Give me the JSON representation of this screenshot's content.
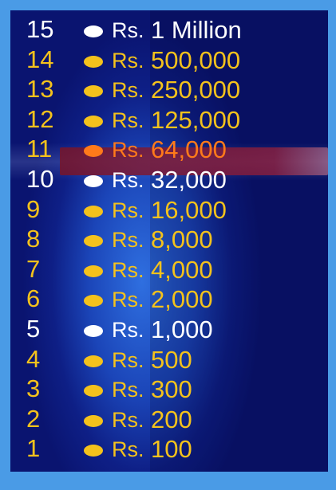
{
  "currency": "Rs.",
  "colors": {
    "safe": "#ffffff",
    "regular": "#f4c21c",
    "current": "#ff7a1a"
  },
  "levels": [
    {
      "num": "15",
      "amount": "1 Million",
      "style": "white"
    },
    {
      "num": "14",
      "amount": "500,000",
      "style": "gold"
    },
    {
      "num": "13",
      "amount": "250,000",
      "style": "gold"
    },
    {
      "num": "12",
      "amount": "125,000",
      "style": "gold"
    },
    {
      "num": "11",
      "amount": "64,000",
      "style": "current"
    },
    {
      "num": "10",
      "amount": "32,000",
      "style": "white"
    },
    {
      "num": "9",
      "amount": "16,000",
      "style": "gold"
    },
    {
      "num": "8",
      "amount": "8,000",
      "style": "gold"
    },
    {
      "num": "7",
      "amount": "4,000",
      "style": "gold"
    },
    {
      "num": "6",
      "amount": "2,000",
      "style": "gold"
    },
    {
      "num": "5",
      "amount": "1,000",
      "style": "white"
    },
    {
      "num": "4",
      "amount": "500",
      "style": "gold"
    },
    {
      "num": "3",
      "amount": "300",
      "style": "gold"
    },
    {
      "num": "2",
      "amount": "200",
      "style": "gold"
    },
    {
      "num": "1",
      "amount": "100",
      "style": "gold"
    }
  ]
}
